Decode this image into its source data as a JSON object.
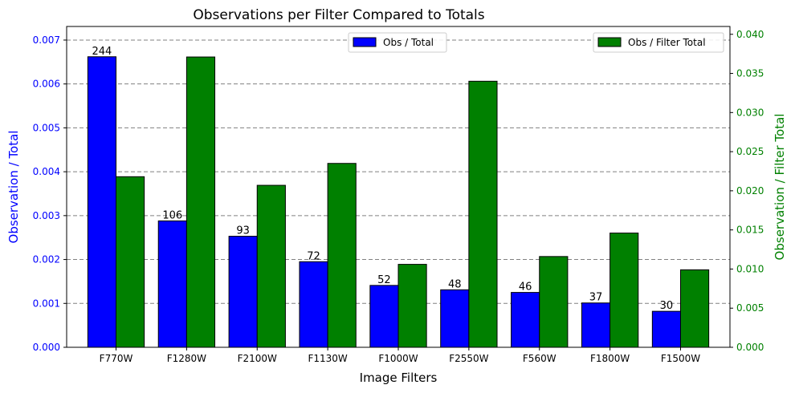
{
  "chart_data": {
    "type": "bar",
    "title": "Observations per Filter Compared to Totals",
    "xlabel": "Image Filters",
    "ylabel_left": "Observation / Total",
    "ylabel_right": "Observation / Filter Total",
    "categories": [
      "F770W",
      "F1280W",
      "F2100W",
      "F1130W",
      "F1000W",
      "F2550W",
      "F560W",
      "F1800W",
      "F1500W"
    ],
    "series": [
      {
        "name": "Obs / Total",
        "axis": "left",
        "color": "#0000ff",
        "values": [
          0.00662,
          0.00288,
          0.00253,
          0.00195,
          0.00141,
          0.00131,
          0.00125,
          0.00101,
          0.00082
        ],
        "labels": [
          "244",
          "106",
          "93",
          "72",
          "52",
          "48",
          "46",
          "37",
          "30"
        ]
      },
      {
        "name": "Obs / Filter Total",
        "axis": "right",
        "color": "#008000",
        "values": [
          0.0218,
          0.0371,
          0.0207,
          0.0235,
          0.0106,
          0.034,
          0.0116,
          0.0146,
          0.0099
        ]
      }
    ],
    "ylim_left": [
      0,
      0.00731
    ],
    "ylim_right": [
      0,
      0.041
    ],
    "yticks_left": [
      "0.000",
      "0.001",
      "0.002",
      "0.003",
      "0.004",
      "0.005",
      "0.006",
      "0.007"
    ],
    "yticks_right": [
      "0.000",
      "0.005",
      "0.010",
      "0.015",
      "0.020",
      "0.025",
      "0.030",
      "0.035",
      "0.040"
    ],
    "grid": "horizontal-dashed",
    "legend_left_placement": "top-center",
    "legend_right_placement": "top-right",
    "left_axis_color": "#0000ff",
    "right_axis_color": "#008000"
  }
}
